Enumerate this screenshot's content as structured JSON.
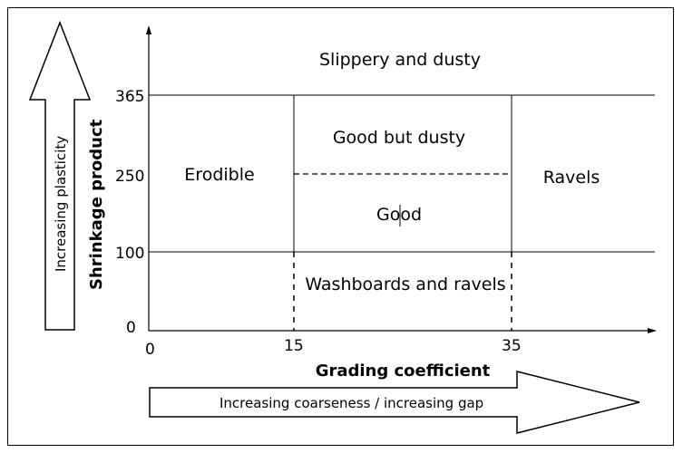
{
  "diagram": {
    "regions": {
      "top": "Slippery and dusty",
      "left": "Erodible",
      "center_upper": "Good but dusty",
      "center_lower": "Good",
      "right": "Ravels",
      "bottom": "Washboards and ravels"
    },
    "y_axis": {
      "title": "Shrinkage product",
      "ticks": [
        "365",
        "250",
        "100",
        "0"
      ],
      "arrow_label": "Increasing plasticity"
    },
    "x_axis": {
      "title": "Grading coefficient",
      "ticks": [
        "0",
        "15",
        "35"
      ],
      "arrow_label": "Increasing coarseness / increasing gap"
    }
  }
}
